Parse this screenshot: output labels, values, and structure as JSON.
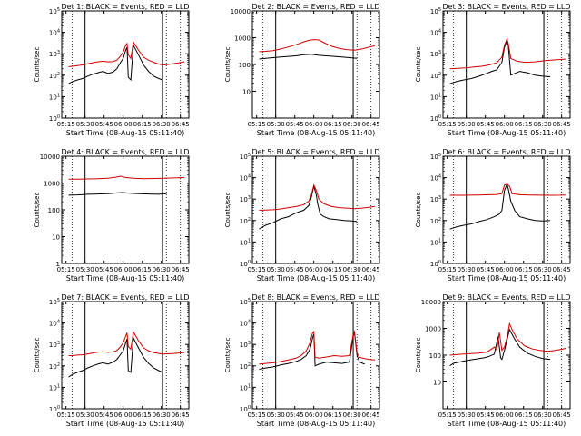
{
  "figure": {
    "xlabel": "Start Time (08-Aug-15 05:11:40)",
    "ylabel": "Counts/sec",
    "xticks": [
      "05:15",
      "05:30",
      "05:45",
      "06:00",
      "06:15",
      "06:30",
      "06:45"
    ],
    "colors": {
      "events": "#000000",
      "lld": "#d00000"
    }
  },
  "chart_data": [
    {
      "type": "line",
      "title": "Det 1: BLACK = Events, RED = LLD",
      "scale": "log",
      "yticks": [
        "10^0",
        "10^1",
        "10^2",
        "10^3",
        "10^4",
        "10^5"
      ],
      "ylim": [
        1,
        100000
      ],
      "xlim": [
        "05:11:40",
        "06:51:40"
      ],
      "series": [
        {
          "name": "Events",
          "color": "#000000",
          "x": [
            "05:17",
            "05:20",
            "05:24",
            "05:28",
            "05:32",
            "05:36",
            "05:40",
            "05:44",
            "05:48",
            "05:52",
            "05:55",
            "05:58",
            "06:00",
            "06:02",
            "06:03",
            "06:04",
            "06:06",
            "06:08",
            "06:12",
            "06:16",
            "06:20",
            "06:24",
            "06:28",
            "06:31"
          ],
          "values": [
            40,
            50,
            60,
            70,
            90,
            110,
            130,
            150,
            120,
            140,
            200,
            400,
            600,
            1500,
            2000,
            80,
            60,
            2500,
            900,
            300,
            150,
            90,
            70,
            60
          ]
        },
        {
          "name": "LLD",
          "color": "#d00000",
          "x": [
            "05:17",
            "05:20",
            "05:24",
            "05:28",
            "05:32",
            "05:36",
            "05:40",
            "05:44",
            "05:48",
            "05:52",
            "05:55",
            "05:58",
            "06:00",
            "06:02",
            "06:03",
            "06:04",
            "06:06",
            "06:08",
            "06:12",
            "06:16",
            "06:20",
            "06:24",
            "06:28",
            "06:32",
            "06:36",
            "06:40",
            "06:44",
            "06:48"
          ],
          "values": [
            250,
            260,
            280,
            300,
            340,
            380,
            420,
            450,
            420,
            430,
            500,
            800,
            1200,
            2500,
            3000,
            900,
            600,
            3500,
            1500,
            700,
            500,
            400,
            330,
            300,
            320,
            350,
            380,
            420
          ]
        }
      ]
    },
    {
      "type": "line",
      "title": "Det 2: BLACK = Events, RED = LLD",
      "scale": "log",
      "yticks": [
        "10",
        "100",
        "1000",
        "10000"
      ],
      "ylim": [
        1,
        10000
      ],
      "xlim": [
        "05:11:40",
        "06:51:40"
      ],
      "series": [
        {
          "name": "Events",
          "color": "#000000",
          "x": [
            "05:17",
            "05:22",
            "05:28",
            "05:34",
            "05:40",
            "05:46",
            "05:52",
            "05:58",
            "06:04",
            "06:10",
            "06:16",
            "06:22",
            "06:28",
            "06:34"
          ],
          "values": [
            160,
            170,
            180,
            190,
            200,
            210,
            230,
            240,
            220,
            210,
            200,
            190,
            180,
            170
          ]
        },
        {
          "name": "LLD",
          "color": "#d00000",
          "x": [
            "05:17",
            "05:22",
            "05:28",
            "05:34",
            "05:40",
            "05:46",
            "05:52",
            "05:56",
            "06:00",
            "06:04",
            "06:08",
            "06:14",
            "06:20",
            "06:26",
            "06:32",
            "06:38",
            "06:44",
            "06:48"
          ],
          "values": [
            300,
            310,
            330,
            380,
            450,
            550,
            700,
            800,
            850,
            820,
            650,
            480,
            400,
            360,
            340,
            380,
            450,
            500
          ]
        }
      ]
    },
    {
      "type": "line",
      "title": "Det 3: BLACK = Events, RED = LLD",
      "scale": "log",
      "yticks": [
        "10^0",
        "10^1",
        "10^2",
        "10^3",
        "10^4",
        "10^5"
      ],
      "ylim": [
        1,
        100000
      ],
      "xlim": [
        "05:11:40",
        "06:51:40"
      ],
      "series": [
        {
          "name": "Events",
          "color": "#000000",
          "x": [
            "05:17",
            "05:22",
            "05:28",
            "05:34",
            "05:40",
            "05:46",
            "05:50",
            "05:54",
            "05:58",
            "06:00",
            "06:02",
            "06:03",
            "06:05",
            "06:08",
            "06:12",
            "06:18",
            "06:24",
            "06:30",
            "06:36"
          ],
          "values": [
            40,
            50,
            60,
            70,
            90,
            120,
            150,
            180,
            400,
            2000,
            4000,
            2500,
            100,
            120,
            150,
            130,
            100,
            90,
            85
          ]
        },
        {
          "name": "LLD",
          "color": "#d00000",
          "x": [
            "05:17",
            "05:24",
            "05:30",
            "05:36",
            "05:42",
            "05:48",
            "05:54",
            "05:58",
            "06:00",
            "06:02",
            "06:03",
            "06:05",
            "06:10",
            "06:16",
            "06:24",
            "06:32",
            "06:40",
            "06:48"
          ],
          "values": [
            200,
            210,
            220,
            240,
            260,
            300,
            380,
            700,
            2500,
            5000,
            3000,
            600,
            450,
            400,
            420,
            480,
            520,
            560
          ]
        }
      ]
    },
    {
      "type": "line",
      "title": "Det 4: BLACK = Events, RED = LLD",
      "scale": "log",
      "yticks": [
        "1",
        "10",
        "100",
        "1000",
        "10000"
      ],
      "ylim": [
        1,
        10000
      ],
      "xlim": [
        "05:11:40",
        "06:51:40"
      ],
      "series": [
        {
          "name": "Events",
          "color": "#000000",
          "x": [
            "05:17",
            "05:24",
            "05:32",
            "05:40",
            "05:48",
            "05:56",
            "06:00",
            "06:04",
            "06:12",
            "06:20",
            "06:28",
            "06:34"
          ],
          "values": [
            350,
            360,
            380,
            390,
            400,
            430,
            440,
            420,
            400,
            390,
            380,
            400
          ]
        },
        {
          "name": "LLD",
          "color": "#d00000",
          "x": [
            "05:17",
            "05:24",
            "05:32",
            "05:40",
            "05:48",
            "05:54",
            "05:58",
            "06:02",
            "06:08",
            "06:16",
            "06:24",
            "06:32",
            "06:40",
            "06:48"
          ],
          "values": [
            1400,
            1400,
            1420,
            1450,
            1500,
            1650,
            1800,
            1600,
            1500,
            1450,
            1480,
            1500,
            1550,
            1600
          ]
        }
      ]
    },
    {
      "type": "line",
      "title": "Det 5: BLACK = Events, RED = LLD",
      "scale": "log",
      "yticks": [
        "10^0",
        "10^1",
        "10^2",
        "10^3",
        "10^4",
        "10^5"
      ],
      "ylim": [
        1,
        100000
      ],
      "xlim": [
        "05:11:40",
        "06:51:40"
      ],
      "series": [
        {
          "name": "Events",
          "color": "#000000",
          "x": [
            "05:17",
            "05:22",
            "05:28",
            "05:34",
            "05:40",
            "05:44",
            "05:48",
            "05:52",
            "05:56",
            "05:58",
            "06:00",
            "06:02",
            "06:03",
            "06:05",
            "06:08",
            "06:12",
            "06:18",
            "06:24",
            "06:30",
            "06:34"
          ],
          "values": [
            40,
            60,
            80,
            120,
            150,
            200,
            250,
            300,
            500,
            1200,
            4000,
            1500,
            600,
            200,
            150,
            120,
            110,
            100,
            95,
            90
          ]
        },
        {
          "name": "LLD",
          "color": "#d00000",
          "x": [
            "05:17",
            "05:22",
            "05:28",
            "05:34",
            "05:40",
            "05:46",
            "05:52",
            "05:56",
            "05:58",
            "06:00",
            "06:02",
            "06:04",
            "06:08",
            "06:14",
            "06:20",
            "06:26",
            "06:32",
            "06:38",
            "06:44",
            "06:48"
          ],
          "values": [
            300,
            310,
            320,
            350,
            400,
            450,
            550,
            800,
            1500,
            4500,
            2500,
            1000,
            600,
            450,
            400,
            380,
            360,
            380,
            420,
            460
          ]
        }
      ]
    },
    {
      "type": "line",
      "title": "Det 6: BLACK = Events, RED = LLD",
      "scale": "log",
      "yticks": [
        "10^0",
        "10^1",
        "10^2",
        "10^3",
        "10^4",
        "10^5"
      ],
      "ylim": [
        1,
        100000
      ],
      "xlim": [
        "05:11:40",
        "06:51:40"
      ],
      "series": [
        {
          "name": "Events",
          "color": "#000000",
          "x": [
            "05:17",
            "05:22",
            "05:28",
            "05:34",
            "05:40",
            "05:46",
            "05:52",
            "05:56",
            "05:58",
            "06:00",
            "06:02",
            "06:03",
            "06:05",
            "06:08",
            "06:12",
            "06:18",
            "06:24",
            "06:30",
            "06:36"
          ],
          "values": [
            40,
            50,
            60,
            70,
            90,
            110,
            150,
            200,
            300,
            2500,
            5000,
            3000,
            800,
            300,
            150,
            120,
            100,
            95,
            100
          ]
        },
        {
          "name": "LLD",
          "color": "#d00000",
          "x": [
            "05:17",
            "05:24",
            "05:32",
            "05:40",
            "05:48",
            "05:54",
            "05:58",
            "06:00",
            "06:02",
            "06:04",
            "06:06",
            "06:12",
            "06:20",
            "06:28",
            "06:36",
            "06:44",
            "06:48"
          ],
          "values": [
            1500,
            1500,
            1520,
            1550,
            1600,
            1650,
            1800,
            4500,
            5000,
            4000,
            1800,
            1600,
            1550,
            1520,
            1500,
            1520,
            1550
          ]
        }
      ]
    },
    {
      "type": "line",
      "title": "Det 7: BLACK = Events, RED = LLD",
      "scale": "log",
      "yticks": [
        "10^0",
        "10^1",
        "10^2",
        "10^3",
        "10^4",
        "10^5"
      ],
      "ylim": [
        1,
        100000
      ],
      "xlim": [
        "05:11:40",
        "06:51:40"
      ],
      "series": [
        {
          "name": "Events",
          "color": "#000000",
          "x": [
            "05:17",
            "05:20",
            "05:24",
            "05:28",
            "05:32",
            "05:36",
            "05:40",
            "05:44",
            "05:48",
            "05:52",
            "05:55",
            "05:58",
            "06:00",
            "06:02",
            "06:03",
            "06:04",
            "06:06",
            "06:08",
            "06:12",
            "06:16",
            "06:20",
            "06:24",
            "06:28",
            "06:31"
          ],
          "values": [
            30,
            40,
            50,
            60,
            80,
            100,
            120,
            140,
            120,
            150,
            200,
            350,
            500,
            1200,
            1800,
            60,
            50,
            2000,
            700,
            250,
            130,
            80,
            60,
            50
          ]
        },
        {
          "name": "LLD",
          "color": "#d00000",
          "x": [
            "05:17",
            "05:20",
            "05:24",
            "05:28",
            "05:32",
            "05:36",
            "05:40",
            "05:44",
            "05:48",
            "05:52",
            "05:55",
            "05:58",
            "06:00",
            "06:02",
            "06:03",
            "06:04",
            "06:06",
            "06:08",
            "06:12",
            "06:16",
            "06:20",
            "06:24",
            "06:28",
            "06:32",
            "06:36",
            "06:40",
            "06:44",
            "06:48"
          ],
          "values": [
            300,
            300,
            320,
            330,
            360,
            400,
            440,
            460,
            430,
            450,
            520,
            800,
            1200,
            2500,
            3500,
            800,
            600,
            3800,
            1500,
            700,
            500,
            420,
            380,
            360,
            370,
            380,
            400,
            420
          ]
        }
      ]
    },
    {
      "type": "line",
      "title": "Det 8: BLACK = Events, RED = LLD",
      "scale": "log",
      "yticks": [
        "10^0",
        "10^1",
        "10^2",
        "10^3",
        "10^4",
        "10^5"
      ],
      "ylim": [
        1,
        100000
      ],
      "xlim": [
        "05:11:40",
        "06:51:40"
      ],
      "series": [
        {
          "name": "Events",
          "color": "#000000",
          "x": [
            "05:17",
            "05:22",
            "05:28",
            "05:34",
            "05:40",
            "05:46",
            "05:50",
            "05:54",
            "05:57",
            "05:59",
            "06:00",
            "06:01",
            "06:04",
            "06:10",
            "06:16",
            "06:22",
            "06:28",
            "06:31",
            "06:32",
            "06:34",
            "06:36",
            "06:40"
          ],
          "values": [
            70,
            80,
            90,
            110,
            130,
            160,
            200,
            300,
            600,
            2000,
            3000,
            100,
            120,
            150,
            140,
            130,
            150,
            2500,
            3500,
            300,
            150,
            120
          ]
        },
        {
          "name": "LLD",
          "color": "#d00000",
          "x": [
            "05:17",
            "05:22",
            "05:28",
            "05:34",
            "05:40",
            "05:46",
            "05:50",
            "05:54",
            "05:57",
            "05:59",
            "06:00",
            "06:01",
            "06:04",
            "06:10",
            "06:16",
            "06:22",
            "06:28",
            "06:31",
            "06:32",
            "06:34",
            "06:36",
            "06:40",
            "06:44",
            "06:48"
          ],
          "values": [
            120,
            130,
            140,
            160,
            190,
            230,
            300,
            500,
            1200,
            3500,
            4000,
            250,
            230,
            260,
            300,
            280,
            300,
            3000,
            4000,
            400,
            250,
            220,
            200,
            190
          ]
        }
      ]
    },
    {
      "type": "line",
      "title": "Det 9: BLACK = Events, RED = LLD",
      "scale": "log",
      "yticks": [
        "10",
        "100",
        "1000",
        "10000"
      ],
      "ylim": [
        1,
        10000
      ],
      "xlim": [
        "05:11:40",
        "06:51:40"
      ],
      "series": [
        {
          "name": "Events",
          "color": "#000000",
          "x": [
            "05:17",
            "05:20",
            "05:24",
            "05:28",
            "05:32",
            "05:36",
            "05:40",
            "05:44",
            "05:48",
            "05:52",
            "05:55",
            "05:57",
            "05:58",
            "06:00",
            "06:04",
            "06:08",
            "06:12",
            "06:18",
            "06:24",
            "06:30",
            "06:36"
          ],
          "values": [
            40,
            50,
            55,
            60,
            65,
            70,
            75,
            80,
            90,
            110,
            500,
            80,
            70,
            150,
            900,
            400,
            200,
            120,
            90,
            75,
            70
          ]
        },
        {
          "name": "LLD",
          "color": "#d00000",
          "x": [
            "05:17",
            "05:22",
            "05:28",
            "05:34",
            "05:40",
            "05:46",
            "05:50",
            "05:52",
            "05:54",
            "05:56",
            "05:58",
            "06:00",
            "06:02",
            "06:04",
            "06:06",
            "06:10",
            "06:16",
            "06:22",
            "06:28",
            "06:34",
            "06:40",
            "06:46",
            "06:48"
          ],
          "values": [
            100,
            105,
            110,
            115,
            120,
            130,
            170,
            200,
            160,
            700,
            150,
            200,
            450,
            1500,
            900,
            400,
            220,
            170,
            150,
            140,
            150,
            170,
            180
          ]
        }
      ]
    }
  ]
}
